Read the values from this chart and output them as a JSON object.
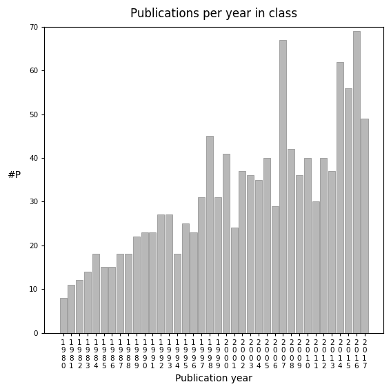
{
  "title": "Publications per year in class",
  "xlabel": "Publication year",
  "ylabel": "#P",
  "years": [
    "1980",
    "1981",
    "1982",
    "1983",
    "1984",
    "1985",
    "1986",
    "1987",
    "1988",
    "1989",
    "1990",
    "1991",
    "1992",
    "1993",
    "1994",
    "1995",
    "1996",
    "1997",
    "1998",
    "1999",
    "2000",
    "2001",
    "2002",
    "2003",
    "2004",
    "2005",
    "2006",
    "2007",
    "2008",
    "2009",
    "2010",
    "2011",
    "2012",
    "2013",
    "2014",
    "2015",
    "2016",
    "2017"
  ],
  "values": [
    8,
    11,
    12,
    14,
    18,
    15,
    15,
    18,
    18,
    22,
    23,
    23,
    27,
    27,
    18,
    25,
    23,
    31,
    45,
    31,
    41,
    24,
    37,
    36,
    35,
    40,
    29,
    67,
    42,
    36,
    40,
    30,
    40,
    37,
    62,
    56,
    69,
    49
  ],
  "bar_color": "#b8b8b8",
  "bar_edgecolor": "#888888",
  "ylim": [
    0,
    70
  ],
  "yticks": [
    0,
    10,
    20,
    30,
    40,
    50,
    60,
    70
  ],
  "background_color": "#ffffff",
  "title_fontsize": 12,
  "axis_label_fontsize": 10,
  "tick_fontsize": 7.5
}
